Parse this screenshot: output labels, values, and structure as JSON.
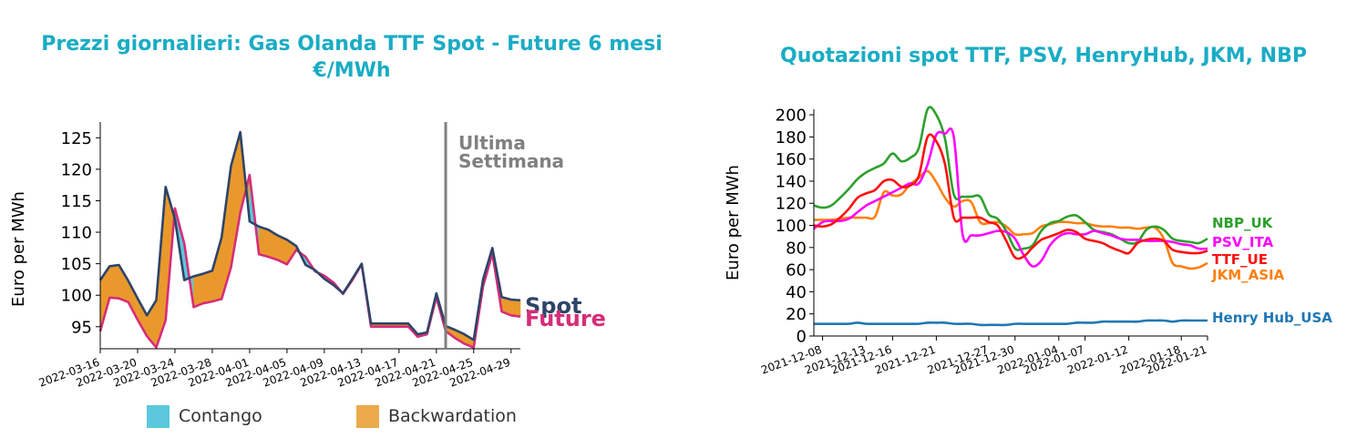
{
  "colors": {
    "title": "#1aacc4",
    "spot": "#2e4468",
    "future": "#d62d78",
    "contango": "#5bc8dc",
    "backwardation": "#e9992c",
    "backwardation_legend": "#ebaa4b",
    "week_line": "#808080",
    "ttf": "#ff0f0f",
    "psv": "#ff00ff",
    "henryhub": "#1f77b4",
    "jkm": "#ff7f0e",
    "nbp": "#2ca02c"
  },
  "left_chart": {
    "title_line1": "Prezzi giornalieri: Gas Olanda TTF Spot - Future 6 mesi",
    "title_line2": "€/MWh",
    "ylabel": "Euro per MWh",
    "week_label_line1": "Ultima",
    "week_label_line2": "Settimana",
    "legend": [
      {
        "key": "contango",
        "label": "Contango"
      },
      {
        "key": "backwardation",
        "label": "Backwardation"
      }
    ]
  },
  "right_chart": {
    "title": "Quotazioni spot TTF, PSV, HenryHub, JKM, NBP",
    "ylabel": "Euro per MWh"
  },
  "chart_data": [
    {
      "type": "area",
      "title": "Prezzi giornalieri: Gas Olanda TTF Spot - Future 6 mesi €/MWh",
      "ylabel": "Euro per MWh",
      "xlabel": "",
      "x_range": [
        "2022-03-16",
        "2022-04-30"
      ],
      "ylim": [
        91.5,
        127.5
      ],
      "yticks": [
        95,
        100,
        105,
        110,
        115,
        120,
        125
      ],
      "xticks": [
        "2022-03-16",
        "2022-03-20",
        "2022-03-24",
        "2022-03-28",
        "2022-04-01",
        "2022-04-05",
        "2022-04-09",
        "2022-04-13",
        "2022-04-17",
        "2022-04-21",
        "2022-04-25",
        "2022-04-29"
      ],
      "last_week_marker": "2022-04-22",
      "series": [
        {
          "name": "Spot",
          "x": [
            "2022-03-16",
            "2022-03-17",
            "2022-03-18",
            "2022-03-19",
            "2022-03-20",
            "2022-03-21",
            "2022-03-22",
            "2022-03-23",
            "2022-03-24",
            "2022-03-25",
            "2022-03-26",
            "2022-03-27",
            "2022-03-28",
            "2022-03-29",
            "2022-03-30",
            "2022-03-31",
            "2022-04-01",
            "2022-04-02",
            "2022-04-03",
            "2022-04-04",
            "2022-04-05",
            "2022-04-06",
            "2022-04-07",
            "2022-04-08",
            "2022-04-09",
            "2022-04-10",
            "2022-04-11",
            "2022-04-12",
            "2022-04-13",
            "2022-04-14",
            "2022-04-15",
            "2022-04-16",
            "2022-04-17",
            "2022-04-18",
            "2022-04-19",
            "2022-04-20",
            "2022-04-21",
            "2022-04-22",
            "2022-04-23",
            "2022-04-24",
            "2022-04-25",
            "2022-04-26",
            "2022-04-27",
            "2022-04-28",
            "2022-04-29",
            "2022-04-30"
          ],
          "values": [
            102.4,
            104.6,
            104.8,
            102.3,
            99.5,
            96.8,
            99.2,
            117.2,
            112.1,
            102.4,
            103.0,
            103.4,
            103.9,
            109.2,
            120.5,
            125.9,
            111.7,
            110.9,
            110.4,
            109.5,
            108.8,
            107.8,
            104.8,
            104.0,
            102.6,
            101.6,
            100.3,
            102.6,
            105.0,
            95.5,
            95.5,
            95.5,
            95.5,
            95.5,
            93.8,
            94.1,
            100.3,
            95.1,
            94.5,
            93.8,
            92.9,
            102.5,
            107.5,
            99.7,
            99.3,
            99.2
          ]
        },
        {
          "name": "Future",
          "x": [
            "2022-03-16",
            "2022-03-17",
            "2022-03-18",
            "2022-03-19",
            "2022-03-20",
            "2022-03-21",
            "2022-03-22",
            "2022-03-23",
            "2022-03-24",
            "2022-03-25",
            "2022-03-26",
            "2022-03-27",
            "2022-03-28",
            "2022-03-29",
            "2022-03-30",
            "2022-03-31",
            "2022-04-01",
            "2022-04-02",
            "2022-04-03",
            "2022-04-04",
            "2022-04-05",
            "2022-04-06",
            "2022-04-07",
            "2022-04-08",
            "2022-04-09",
            "2022-04-10",
            "2022-04-11",
            "2022-04-12",
            "2022-04-13",
            "2022-04-14",
            "2022-04-15",
            "2022-04-16",
            "2022-04-17",
            "2022-04-18",
            "2022-04-19",
            "2022-04-20",
            "2022-04-21",
            "2022-04-22",
            "2022-04-23",
            "2022-04-24",
            "2022-04-25",
            "2022-04-26",
            "2022-04-27",
            "2022-04-28",
            "2022-04-29",
            "2022-04-30"
          ],
          "values": [
            94.3,
            99.6,
            99.5,
            98.9,
            96.1,
            93.5,
            91.7,
            96.0,
            113.8,
            108.2,
            98.1,
            98.7,
            99.0,
            99.4,
            104.4,
            113.1,
            119.1,
            106.5,
            106.1,
            105.6,
            104.9,
            107.2,
            106.1,
            103.8,
            103.1,
            102.0,
            100.2,
            102.4,
            104.9,
            95.0,
            95.0,
            95.0,
            95.0,
            95.0,
            93.4,
            93.8,
            99.7,
            94.3,
            93.2,
            92.3,
            91.7,
            101.4,
            106.6,
            97.4,
            96.8,
            96.6
          ]
        }
      ]
    },
    {
      "type": "line",
      "title": "Quotazioni spot TTF, PSV, HenryHub, JKM, NBP",
      "ylabel": "Euro per MWh",
      "xlabel": "",
      "x_range": [
        "2021-12-07",
        "2022-01-21"
      ],
      "ylim": [
        0,
        205
      ],
      "yticks": [
        0,
        20,
        40,
        60,
        80,
        100,
        120,
        140,
        160,
        180,
        200
      ],
      "xticks": [
        "2021-12-08",
        "2021-12-13",
        "2021-12-16",
        "2021-12-21",
        "2021-12-27",
        "2021-12-30",
        "2022-01-04",
        "2022-01-07",
        "2022-01-12",
        "2022-01-18",
        "2022-01-21"
      ],
      "series": [
        {
          "name": "NBP_UK",
          "x": [
            "2021-12-07",
            "2021-12-08",
            "2021-12-09",
            "2021-12-10",
            "2021-12-11",
            "2021-12-12",
            "2021-12-13",
            "2021-12-14",
            "2021-12-15",
            "2021-12-16",
            "2021-12-17",
            "2021-12-18",
            "2021-12-19",
            "2021-12-20",
            "2021-12-21",
            "2021-12-22",
            "2021-12-23",
            "2021-12-24",
            "2021-12-25",
            "2021-12-26",
            "2021-12-27",
            "2021-12-28",
            "2021-12-29",
            "2021-12-30",
            "2021-12-31",
            "2022-01-01",
            "2022-01-02",
            "2022-01-03",
            "2022-01-04",
            "2022-01-05",
            "2022-01-06",
            "2022-01-07",
            "2022-01-08",
            "2022-01-09",
            "2022-01-10",
            "2022-01-11",
            "2022-01-12",
            "2022-01-13",
            "2022-01-14",
            "2022-01-15",
            "2022-01-16",
            "2022-01-17",
            "2022-01-18",
            "2022-01-19",
            "2022-01-20",
            "2022-01-21"
          ],
          "values": [
            118,
            116,
            118,
            125,
            133,
            142,
            148,
            152,
            156,
            165,
            158,
            161,
            170,
            205,
            200,
            178,
            128,
            126,
            126,
            126,
            110,
            106,
            95,
            79,
            79,
            82,
            95,
            102,
            104,
            108,
            109,
            103,
            96,
            94,
            92,
            88,
            84,
            85,
            96,
            99,
            96,
            88,
            86,
            85,
            84,
            88
          ]
        },
        {
          "name": "PSV_ITA",
          "x": [
            "2021-12-07",
            "2021-12-08",
            "2021-12-09",
            "2021-12-10",
            "2021-12-11",
            "2021-12-12",
            "2021-12-13",
            "2021-12-14",
            "2021-12-15",
            "2021-12-16",
            "2021-12-17",
            "2021-12-18",
            "2021-12-19",
            "2021-12-20",
            "2021-12-21",
            "2021-12-22",
            "2021-12-23",
            "2021-12-24",
            "2021-12-25",
            "2021-12-26",
            "2021-12-27",
            "2021-12-28",
            "2021-12-29",
            "2021-12-30",
            "2021-12-31",
            "2022-01-01",
            "2022-01-02",
            "2022-01-03",
            "2022-01-04",
            "2022-01-05",
            "2022-01-06",
            "2022-01-07",
            "2022-01-08",
            "2022-01-09",
            "2022-01-10",
            "2022-01-11",
            "2022-01-12",
            "2022-01-13",
            "2022-01-14",
            "2022-01-15",
            "2022-01-16",
            "2022-01-17",
            "2022-01-18",
            "2022-01-19",
            "2022-01-20",
            "2022-01-21"
          ],
          "values": [
            97,
            103,
            104,
            104,
            106,
            112,
            118,
            122,
            126,
            130,
            134,
            138,
            138,
            155,
            182,
            183,
            180,
            92,
            91,
            91,
            93,
            95,
            94,
            88,
            73,
            63,
            68,
            82,
            90,
            93,
            92,
            92,
            95,
            93,
            91,
            88,
            87,
            87,
            86,
            86,
            86,
            85,
            83,
            82,
            79,
            79
          ]
        },
        {
          "name": "TTF_UE",
          "x": [
            "2021-12-07",
            "2021-12-08",
            "2021-12-09",
            "2021-12-10",
            "2021-12-11",
            "2021-12-12",
            "2021-12-13",
            "2021-12-14",
            "2021-12-15",
            "2021-12-16",
            "2021-12-17",
            "2021-12-18",
            "2021-12-19",
            "2021-12-20",
            "2021-12-21",
            "2021-12-22",
            "2021-12-23",
            "2021-12-24",
            "2021-12-25",
            "2021-12-26",
            "2021-12-27",
            "2021-12-28",
            "2021-12-29",
            "2021-12-30",
            "2021-12-31",
            "2022-01-01",
            "2022-01-02",
            "2022-01-03",
            "2022-01-04",
            "2022-01-05",
            "2022-01-06",
            "2022-01-07",
            "2022-01-08",
            "2022-01-09",
            "2022-01-10",
            "2022-01-11",
            "2022-01-12",
            "2022-01-13",
            "2022-01-14",
            "2022-01-15",
            "2022-01-16",
            "2022-01-17",
            "2022-01-18",
            "2022-01-19",
            "2022-01-20",
            "2022-01-21"
          ],
          "values": [
            100,
            99,
            101,
            107,
            115,
            125,
            129,
            132,
            140,
            141,
            135,
            136,
            145,
            180,
            176,
            155,
            107,
            107,
            107,
            107,
            103,
            100,
            86,
            71,
            72,
            80,
            87,
            90,
            93,
            96,
            94,
            88,
            86,
            84,
            80,
            77,
            75,
            84,
            87,
            88,
            86,
            78,
            76,
            75,
            75,
            77
          ]
        },
        {
          "name": "JKM_ASIA",
          "x": [
            "2021-12-07",
            "2021-12-08",
            "2021-12-09",
            "2021-12-10",
            "2021-12-11",
            "2021-12-12",
            "2021-12-13",
            "2021-12-14",
            "2021-12-15",
            "2021-12-16",
            "2021-12-17",
            "2021-12-18",
            "2021-12-19",
            "2021-12-20",
            "2021-12-21",
            "2021-12-22",
            "2021-12-23",
            "2021-12-24",
            "2021-12-25",
            "2021-12-26",
            "2021-12-27",
            "2021-12-28",
            "2021-12-29",
            "2021-12-30",
            "2021-12-31",
            "2022-01-01",
            "2022-01-02",
            "2022-01-03",
            "2022-01-04",
            "2022-01-05",
            "2022-01-06",
            "2022-01-07",
            "2022-01-08",
            "2022-01-09",
            "2022-01-10",
            "2022-01-11",
            "2022-01-12",
            "2022-01-13",
            "2022-01-14",
            "2022-01-15",
            "2022-01-16",
            "2022-01-17",
            "2022-01-18",
            "2022-01-19",
            "2022-01-20",
            "2022-01-21"
          ],
          "values": [
            105,
            105,
            105,
            106,
            107,
            107,
            107,
            108,
            130,
            127,
            128,
            137,
            143,
            149,
            139,
            125,
            117,
            122,
            121,
            103,
            102,
            103,
            99,
            92,
            92,
            93,
            99,
            101,
            103,
            103,
            102,
            102,
            100,
            99,
            99,
            98,
            98,
            97,
            98,
            98,
            88,
            66,
            63,
            61,
            62,
            66
          ]
        },
        {
          "name": "Henry Hub_USA",
          "x": [
            "2021-12-07",
            "2021-12-08",
            "2021-12-09",
            "2021-12-10",
            "2021-12-11",
            "2021-12-12",
            "2021-12-13",
            "2021-12-14",
            "2021-12-15",
            "2021-12-16",
            "2021-12-17",
            "2021-12-18",
            "2021-12-19",
            "2021-12-20",
            "2021-12-21",
            "2021-12-22",
            "2021-12-23",
            "2021-12-24",
            "2021-12-25",
            "2021-12-26",
            "2021-12-27",
            "2021-12-28",
            "2021-12-29",
            "2021-12-30",
            "2021-12-31",
            "2022-01-01",
            "2022-01-02",
            "2022-01-03",
            "2022-01-04",
            "2022-01-05",
            "2022-01-06",
            "2022-01-07",
            "2022-01-08",
            "2022-01-09",
            "2022-01-10",
            "2022-01-11",
            "2022-01-12",
            "2022-01-13",
            "2022-01-14",
            "2022-01-15",
            "2022-01-16",
            "2022-01-17",
            "2022-01-18",
            "2022-01-19",
            "2022-01-20",
            "2022-01-21"
          ],
          "values": [
            11,
            11,
            11,
            11,
            11,
            12,
            11,
            11,
            11,
            11,
            11,
            11,
            11,
            12,
            12,
            12,
            11,
            11,
            11,
            10,
            10,
            10,
            10,
            11,
            11,
            11,
            11,
            11,
            11,
            11,
            12,
            12,
            12,
            13,
            13,
            13,
            13,
            13,
            14,
            14,
            14,
            13,
            14,
            14,
            14,
            14
          ]
        }
      ]
    }
  ]
}
